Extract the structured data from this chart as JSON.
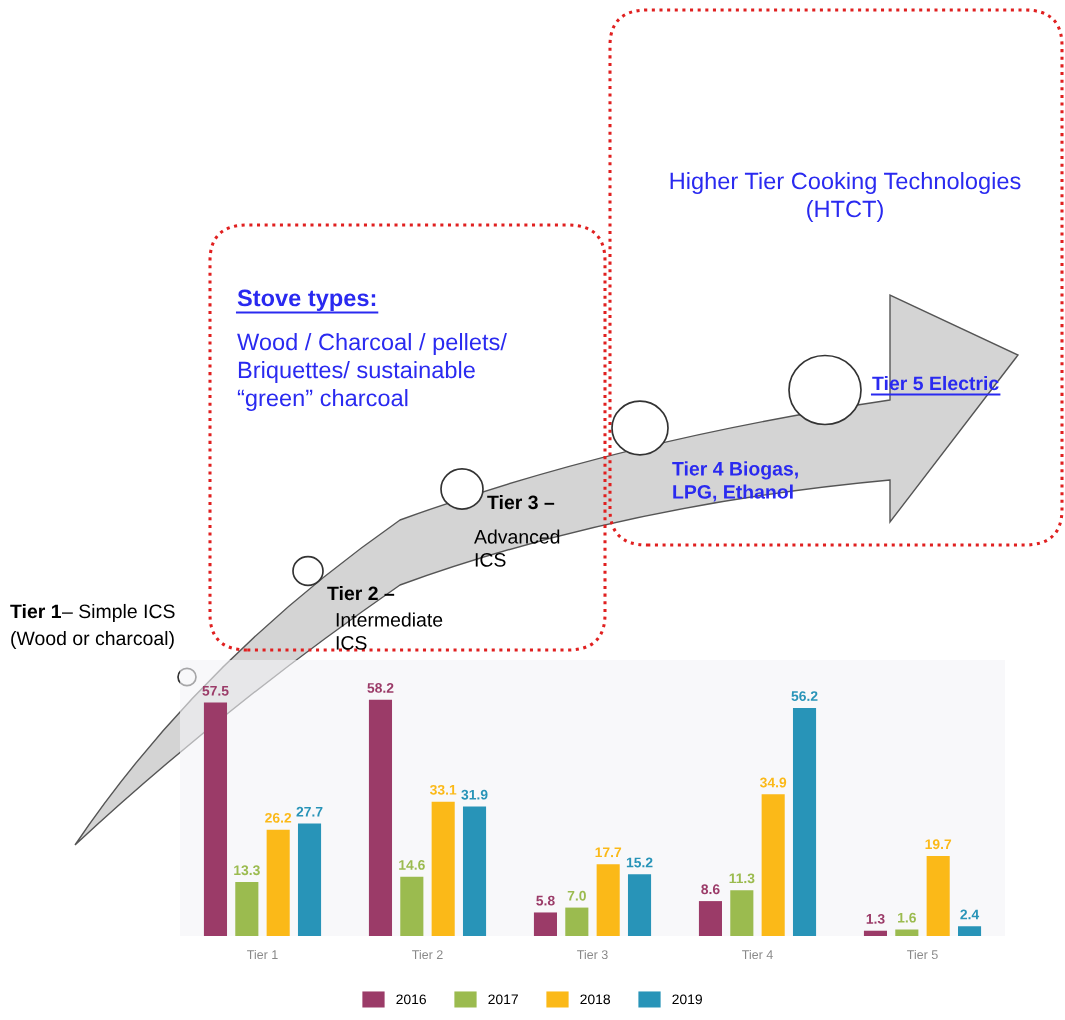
{
  "chart_data": {
    "type": "bar",
    "categories": [
      "Tier 1",
      "Tier 2",
      "Tier 3",
      "Tier 4",
      "Tier 5"
    ],
    "series": [
      {
        "name": "2016",
        "color": "#9b3b68",
        "values": [
          57.5,
          58.2,
          5.8,
          8.6,
          1.3
        ],
        "value_labels": [
          "57.5",
          "58.2",
          "5.8",
          "8.6",
          "1.3"
        ]
      },
      {
        "name": "2017",
        "color": "#9bbb4f",
        "values": [
          13.3,
          14.6,
          7.0,
          11.3,
          1.6
        ],
        "value_labels": [
          "13.3",
          "14.6",
          "7.0",
          "11.3",
          "1.6"
        ]
      },
      {
        "name": "2018",
        "color": "#fbb918",
        "values": [
          26.2,
          33.1,
          17.7,
          34.9,
          19.7
        ],
        "value_labels": [
          "26.2",
          "33.1",
          "17.7",
          "34.9",
          "19.7"
        ]
      },
      {
        "name": "2019",
        "color": "#2894b8",
        "values": [
          27.7,
          31.9,
          15.2,
          56.2,
          2.4
        ],
        "value_labels": [
          "27.7",
          "31.9",
          "15.2",
          "56.2",
          "2.4"
        ]
      }
    ],
    "ylim": [
      0,
      68
    ],
    "legend": "bottom",
    "grid": false,
    "tick_labels": "x",
    "annotations": [
      "Higher Tier Cooking Technologies\n(HTCT)",
      "Stove types:",
      "Wood / Charcoal / pellets/\nBriquettes/ sustainable\n“green” charcoal",
      "Tier 1",
      "– Simple ICS",
      "(Wood or charcoal)",
      "Tier 2 –",
      "Intermediate\nICS",
      "Tier 3 –",
      "Advanced\nICS",
      "Tier 4 Biogas,\nLPG, Ethanol",
      "Tier 5 Electric"
    ]
  }
}
